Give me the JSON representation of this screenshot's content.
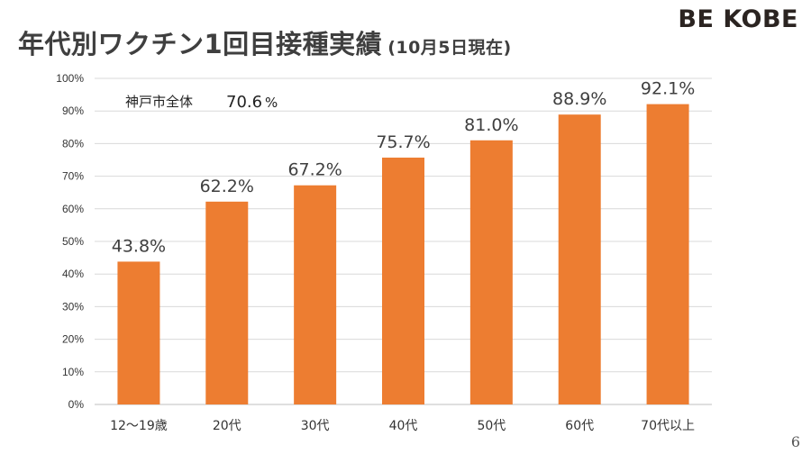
{
  "slide": {
    "title": "年代別ワクチン1回目接種実績",
    "subtitle": "(10月5日現在)",
    "logo": "BE KOBE",
    "page_number": "6"
  },
  "chart_data": {
    "type": "bar",
    "title": "年代別ワクチン1回目接種実績",
    "xlabel": "",
    "ylabel": "",
    "categories": [
      "12～19歳",
      "20代",
      "30代",
      "40代",
      "50代",
      "60代",
      "70代以上"
    ],
    "values": [
      43.8,
      62.2,
      67.2,
      75.7,
      81.0,
      88.9,
      92.1
    ],
    "data_labels": [
      "43.8%",
      "62.2%",
      "67.2%",
      "75.7%",
      "81.0%",
      "88.9%",
      "92.1%"
    ],
    "ylim": [
      0,
      100
    ],
    "yticks": [
      0,
      10,
      20,
      30,
      40,
      50,
      60,
      70,
      80,
      90,
      100
    ],
    "ytick_labels": [
      "0%",
      "10%",
      "20%",
      "30%",
      "40%",
      "50%",
      "60%",
      "70%",
      "80%",
      "90%",
      "100%"
    ],
    "grid": true,
    "bar_color": "#ED7D31",
    "grid_color": "#D9D9D9",
    "annotation": {
      "label": "神戸市全体",
      "value": 70.6,
      "value_label": "70.6",
      "unit": "%"
    }
  }
}
